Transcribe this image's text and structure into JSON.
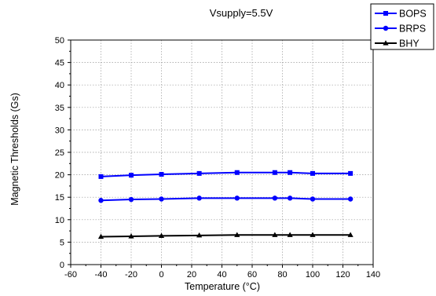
{
  "chart_data": {
    "type": "line",
    "title": "Vsupply=5.5V",
    "xlabel": "Temperature (°C)",
    "ylabel": "Magnetic Thresholds (Gs)",
    "xlim": [
      -60,
      140
    ],
    "ylim": [
      0,
      50
    ],
    "x_ticks": [
      -60,
      -40,
      -20,
      0,
      20,
      40,
      60,
      80,
      100,
      120,
      140
    ],
    "y_ticks": [
      0,
      5,
      10,
      15,
      20,
      25,
      30,
      35,
      40,
      45,
      50
    ],
    "grid": true,
    "legend_position": "top-right",
    "x": [
      -40,
      -20,
      0,
      25,
      50,
      75,
      85,
      100,
      125
    ],
    "series": [
      {
        "name": "BOPS",
        "marker": "square",
        "color": "#0000ff",
        "values": [
          19.6,
          19.9,
          20.1,
          20.3,
          20.5,
          20.5,
          20.5,
          20.3,
          20.3
        ]
      },
      {
        "name": "BRPS",
        "marker": "circle",
        "color": "#0000ff",
        "values": [
          14.3,
          14.5,
          14.6,
          14.8,
          14.8,
          14.8,
          14.8,
          14.6,
          14.6
        ]
      },
      {
        "name": "BHY",
        "marker": "triangle",
        "color": "#000000",
        "values": [
          6.2,
          6.3,
          6.4,
          6.5,
          6.6,
          6.6,
          6.6,
          6.6,
          6.6
        ]
      }
    ]
  }
}
